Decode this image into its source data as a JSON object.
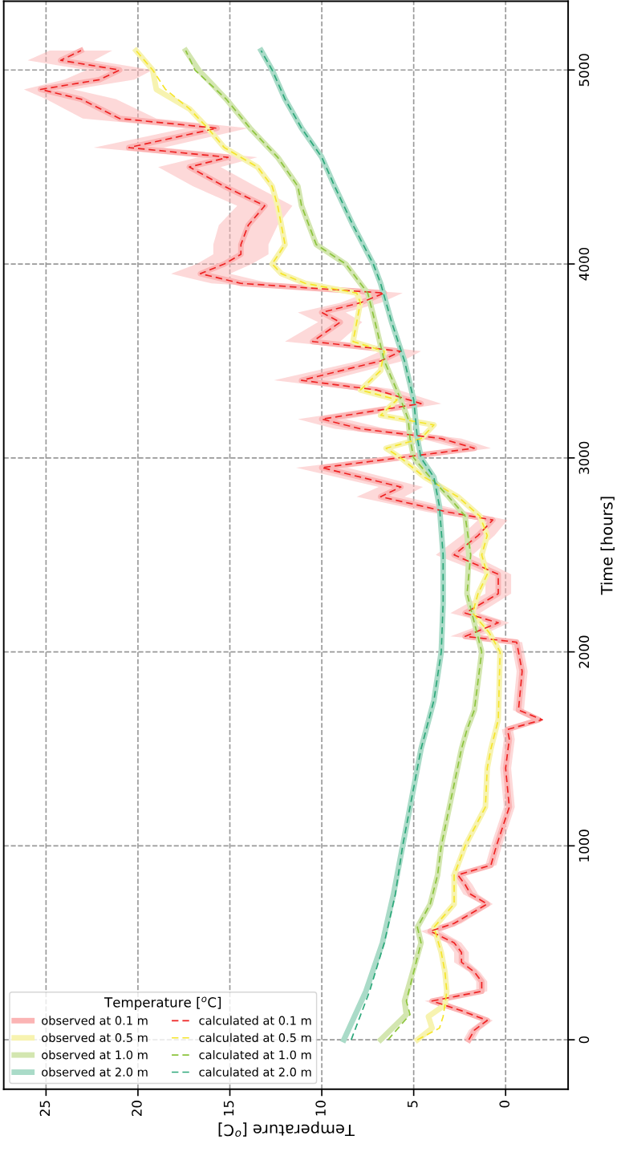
{
  "chart_data": {
    "type": "line",
    "orientation": "horizontal",
    "xlabel": "Temperature [$^{o}$C]",
    "ylabel": "Time [hours]",
    "legend_title": "Temperature [$^{o}$C]",
    "xlim": [
      27.3,
      -3.4
    ],
    "xticks": [
      0,
      5,
      10,
      15,
      20,
      25
    ],
    "ylim": [
      -255,
      5355
    ],
    "yticks": [
      0,
      1000,
      2000,
      3000,
      4000,
      5000
    ],
    "grid": true,
    "legend": "bottom left",
    "series": [
      {
        "name": "observed at 0.1 m",
        "color": "#fbb4b4",
        "line_style": "solid",
        "x": [
          0,
          50,
          100,
          150,
          200,
          250,
          300,
          350,
          400,
          450,
          500,
          560,
          600,
          700,
          750,
          800,
          850,
          900,
          1000,
          1200,
          1400,
          1550,
          1600,
          1650,
          1700,
          1900,
          2050,
          2080,
          2150,
          2200,
          2300,
          2400,
          2500,
          2600,
          2680,
          2720,
          2800,
          2850,
          2950,
          3050,
          3100,
          3150,
          3200,
          3280,
          3350,
          3400,
          3500,
          3550,
          3600,
          3700,
          3750,
          3800,
          3850,
          3900,
          3950,
          4000,
          4050,
          4100,
          4200,
          4300,
          4400,
          4500,
          4550,
          4600,
          4700,
          4750,
          4850,
          4900,
          4950,
          5000,
          5050,
          5100
        ],
        "values": [
          2.0,
          1.7,
          1.0,
          2.4,
          4.0,
          1.3,
          1.3,
          1.7,
          2.4,
          2.4,
          2.8,
          4.1,
          2.8,
          1.0,
          1.9,
          2.2,
          2.6,
          0.8,
          0.5,
          -0.2,
          0.0,
          -0.2,
          -0.1,
          -1.8,
          -0.7,
          -0.9,
          -0.6,
          2.2,
          0.4,
          2.2,
          0.4,
          0.4,
          2.8,
          1.5,
          0.7,
          3.1,
          6.8,
          5.7,
          10.0,
          1.7,
          3.5,
          7.9,
          10.0,
          4.6,
          7.0,
          11.1,
          6.8,
          5.7,
          10.5,
          9.0,
          10.0,
          7.9,
          6.6,
          14.4,
          16.6,
          15.3,
          14.4,
          14.4,
          14.0,
          13.1,
          15.3,
          17.2,
          15.1,
          20.5,
          15.7,
          21.0,
          23.1,
          25.3,
          22.1,
          21.0,
          24.2,
          23.1
        ],
        "lower": [
          1.7,
          1.4,
          0.7,
          2.0,
          3.4,
          1.0,
          1.0,
          1.4,
          2.0,
          2.0,
          2.4,
          3.5,
          2.4,
          0.7,
          1.5,
          1.8,
          2.2,
          0.5,
          0.2,
          -0.5,
          -0.3,
          -0.5,
          -0.4,
          -2.0,
          -1.0,
          -1.2,
          -0.9,
          1.4,
          -0.2,
          1.4,
          -0.3,
          -0.3,
          1.8,
          0.6,
          -0.1,
          2.0,
          5.5,
          4.5,
          8.6,
          0.8,
          2.4,
          6.5,
          8.7,
          3.5,
          5.8,
          9.6,
          5.6,
          4.6,
          9.0,
          7.8,
          8.7,
          6.8,
          5.6,
          12.8,
          15.0,
          13.8,
          12.9,
          12.9,
          12.4,
          11.6,
          13.6,
          15.5,
          13.5,
          18.6,
          14.0,
          19.0,
          21.2,
          23.5,
          20.2,
          19.2,
          22.4,
          21.4
        ],
        "upper": [
          2.3,
          2.0,
          1.3,
          2.8,
          4.4,
          1.6,
          1.6,
          2.0,
          2.8,
          2.8,
          3.2,
          4.6,
          3.2,
          1.3,
          2.3,
          2.6,
          3.0,
          1.1,
          0.8,
          0.1,
          0.3,
          0.1,
          0.2,
          -1.6,
          -0.4,
          -0.6,
          -0.3,
          3.0,
          1.0,
          3.0,
          1.1,
          1.1,
          3.8,
          2.4,
          1.5,
          4.2,
          8.1,
          6.9,
          11.4,
          2.6,
          4.6,
          9.3,
          11.3,
          5.7,
          8.2,
          12.6,
          8.0,
          6.8,
          12.0,
          10.2,
          11.3,
          9.0,
          7.6,
          16.0,
          18.2,
          16.8,
          15.9,
          15.9,
          15.6,
          14.6,
          17.0,
          18.9,
          16.7,
          22.4,
          17.4,
          23.0,
          25.0,
          26.2,
          24.0,
          22.8,
          26.0,
          24.8
        ]
      },
      {
        "name": "observed at 0.5 m",
        "color": "#f7f3b0",
        "line_style": "solid",
        "x": [
          0,
          60,
          120,
          180,
          250,
          350,
          450,
          580,
          700,
          850,
          1000,
          1200,
          1400,
          1500,
          1650,
          2000,
          2100,
          2200,
          2300,
          2400,
          2500,
          2600,
          2700,
          2800,
          2900,
          3000,
          3050,
          3100,
          3170,
          3220,
          3300,
          3350,
          3450,
          3550,
          3600,
          3700,
          3800,
          3850,
          3900,
          3950,
          4000,
          4100,
          4200,
          4300,
          4400,
          4500,
          4600,
          4700,
          4800,
          4900,
          5000,
          5100
        ],
        "values": [
          4.8,
          4.0,
          4.2,
          3.3,
          3.2,
          3.3,
          3.5,
          3.9,
          2.8,
          2.8,
          2.2,
          1.1,
          1.0,
          0.8,
          0.4,
          0.3,
          0.9,
          1.8,
          1.5,
          1.0,
          1.3,
          1.0,
          1.4,
          2.6,
          4.4,
          5.7,
          6.5,
          4.6,
          3.9,
          6.8,
          5.9,
          7.9,
          6.8,
          6.6,
          8.3,
          8.1,
          7.9,
          8.1,
          10.9,
          12.2,
          12.7,
          12.0,
          12.2,
          12.4,
          12.7,
          13.5,
          15.3,
          16.2,
          17.2,
          19.0,
          19.2,
          20.1
        ]
      },
      {
        "name": "observed at 1.0 m",
        "color": "#d3e6b0",
        "line_style": "solid",
        "x": [
          0,
          130,
          200,
          500,
          580,
          700,
          850,
          1000,
          1500,
          1600,
          1700,
          2000,
          2300,
          2500,
          2700,
          2800,
          2900,
          3000,
          3100,
          3200,
          3300,
          3500,
          3700,
          3850,
          4000,
          4100,
          4300,
          4400,
          4550,
          4700,
          4850,
          5000,
          5100
        ],
        "values": [
          6.8,
          5.4,
          5.5,
          4.6,
          4.8,
          4.1,
          3.7,
          3.5,
          2.4,
          2.1,
          1.7,
          1.3,
          2.1,
          2.0,
          2.2,
          3.1,
          4.1,
          5.0,
          5.2,
          5.3,
          5.7,
          6.6,
          7.1,
          7.5,
          8.7,
          10.3,
          11.1,
          11.3,
          12.4,
          13.9,
          15.2,
          16.7,
          17.4
        ]
      },
      {
        "name": "observed at 2.0 m",
        "color": "#aadbc8",
        "line_style": "solid",
        "x": [
          0,
          250,
          500,
          750,
          1000,
          1250,
          1500,
          1750,
          2000,
          2250,
          2500,
          2750,
          2900,
          3000,
          3100,
          3300,
          3500,
          3700,
          3900,
          4000,
          4200,
          4400,
          4550,
          4700,
          4850,
          5000,
          5100
        ],
        "values": [
          8.8,
          7.6,
          6.7,
          6.1,
          5.6,
          5.1,
          4.6,
          3.9,
          3.5,
          3.4,
          3.4,
          3.6,
          3.9,
          4.6,
          4.8,
          5.0,
          5.5,
          6.2,
          6.8,
          7.2,
          8.3,
          9.3,
          10.0,
          11.1,
          12.0,
          12.7,
          13.3
        ]
      },
      {
        "name": "calculated at 0.1 m",
        "color": "#ee2222",
        "line_style": "dashed",
        "x": [
          0,
          50,
          100,
          150,
          200,
          250,
          300,
          350,
          400,
          450,
          500,
          560,
          600,
          700,
          750,
          800,
          850,
          900,
          1000,
          1200,
          1400,
          1550,
          1600,
          1650,
          1700,
          1900,
          2050,
          2080,
          2150,
          2200,
          2300,
          2400,
          2500,
          2600,
          2680,
          2720,
          2800,
          2850,
          2950,
          3050,
          3100,
          3150,
          3200,
          3280,
          3350,
          3400,
          3500,
          3550,
          3600,
          3700,
          3750,
          3800,
          3850,
          3900,
          3950,
          4000,
          4050,
          4100,
          4200,
          4300,
          4400,
          4500,
          4550,
          4600,
          4700,
          4750,
          4850,
          4900,
          4950,
          5000,
          5050,
          5100
        ],
        "values": [
          2.0,
          1.7,
          1.0,
          2.4,
          4.0,
          1.3,
          1.3,
          1.7,
          2.4,
          2.4,
          2.8,
          4.1,
          2.8,
          1.0,
          1.9,
          2.2,
          2.6,
          0.8,
          0.5,
          -0.2,
          0.0,
          -0.2,
          -0.1,
          -2.0,
          -0.7,
          -0.9,
          -0.6,
          2.2,
          0.4,
          2.2,
          0.4,
          0.4,
          2.8,
          1.5,
          0.7,
          3.1,
          6.8,
          5.7,
          10.0,
          1.7,
          3.5,
          7.9,
          10.0,
          4.6,
          7.0,
          11.1,
          6.8,
          5.7,
          10.5,
          9.0,
          10.0,
          7.9,
          6.6,
          14.4,
          16.6,
          15.3,
          14.4,
          14.4,
          14.0,
          13.1,
          15.3,
          17.2,
          15.1,
          20.5,
          15.7,
          21.0,
          23.1,
          25.3,
          22.1,
          21.0,
          24.2,
          23.1
        ]
      },
      {
        "name": "calculated at 0.5 m",
        "color": "#f5e52a",
        "line_style": "dashed",
        "x": [
          0,
          60,
          120,
          180,
          250,
          350,
          450,
          580,
          700,
          850,
          1000,
          1200,
          1400,
          1500,
          1650,
          2000,
          2100,
          2200,
          2300,
          2400,
          2500,
          2600,
          2700,
          2800,
          2900,
          3000,
          3050,
          3100,
          3170,
          3220,
          3300,
          3350,
          3450,
          3550,
          3600,
          3700,
          3800,
          3850,
          3900,
          3950,
          4000,
          4100,
          4200,
          4300,
          4400,
          4500,
          4600,
          4700,
          4800,
          4900,
          5000,
          5100
        ],
        "values": [
          4.8,
          3.6,
          3.4,
          3.3,
          3.2,
          3.3,
          3.5,
          3.9,
          2.8,
          2.8,
          2.2,
          1.1,
          1.0,
          0.8,
          0.4,
          0.3,
          0.9,
          1.8,
          1.5,
          1.0,
          1.3,
          1.0,
          1.4,
          2.6,
          4.4,
          5.7,
          6.5,
          4.6,
          3.9,
          6.8,
          5.9,
          7.9,
          6.8,
          6.6,
          8.3,
          8.1,
          7.9,
          8.1,
          10.9,
          12.2,
          12.7,
          12.0,
          12.2,
          12.4,
          12.7,
          13.5,
          15.3,
          16.2,
          17.2,
          18.5,
          19.2,
          20.1
        ]
      },
      {
        "name": "calculated at 1.0 m",
        "color": "#8cc43c",
        "line_style": "dashed",
        "x": [
          0,
          130,
          200,
          500,
          580,
          700,
          850,
          1000,
          1500,
          1600,
          1700,
          2000,
          2300,
          2500,
          2700,
          2800,
          2900,
          3000,
          3100,
          3200,
          3300,
          3500,
          3700,
          3850,
          4000,
          4100,
          4300,
          4400,
          4550,
          4700,
          4850,
          5000,
          5100
        ],
        "values": [
          6.4,
          5.2,
          5.4,
          4.6,
          4.8,
          4.1,
          3.7,
          3.5,
          2.4,
          2.1,
          1.7,
          1.3,
          2.1,
          1.9,
          2.2,
          3.1,
          4.1,
          5.0,
          5.2,
          5.3,
          5.7,
          6.6,
          7.1,
          7.5,
          8.7,
          10.3,
          11.1,
          11.3,
          12.4,
          13.9,
          15.2,
          16.9,
          17.4
        ]
      },
      {
        "name": "calculated at 2.0 m",
        "color": "#2ca87a",
        "line_style": "dashed",
        "x": [
          0,
          250,
          500,
          750,
          1000,
          1250,
          1500,
          1750,
          2000,
          2250,
          2500,
          2750,
          2900,
          3000,
          3100,
          3300,
          3500,
          3700,
          3900,
          4000,
          4200,
          4400,
          4550,
          4700,
          4850,
          5000,
          5100
        ],
        "values": [
          8.4,
          7.4,
          6.6,
          6.0,
          5.6,
          5.1,
          4.6,
          3.9,
          3.5,
          3.4,
          3.4,
          3.6,
          3.9,
          4.6,
          4.8,
          5.0,
          5.5,
          6.2,
          6.8,
          7.2,
          8.3,
          9.3,
          10.0,
          11.1,
          12.0,
          12.7,
          13.3
        ]
      }
    ]
  }
}
